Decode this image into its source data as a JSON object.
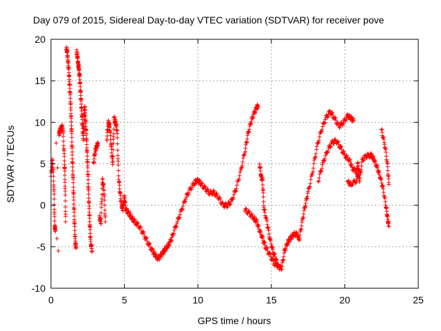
{
  "chart_data": {
    "type": "scatter",
    "title": "Day 079 of 2015, Sidereal Day-to-day VTEC variation (SDTVAR) for receiver pove",
    "xlabel": "GPS time / hours",
    "ylabel": "SDTVAR / TECUs",
    "xlim": [
      0,
      25
    ],
    "ylim": [
      -10,
      20
    ],
    "xticks": [
      0,
      5,
      10,
      15,
      20,
      25
    ],
    "yticks": [
      -10,
      -5,
      0,
      5,
      10,
      15,
      20
    ],
    "grid": true,
    "marker": "+",
    "color": "#ff0000",
    "series": [
      {
        "name": "SDTVAR",
        "points": [
          [
            0.0,
            3.5
          ],
          [
            0.1,
            5.5
          ],
          [
            0.2,
            2.0
          ],
          [
            0.25,
            -2.5
          ],
          [
            0.3,
            -3.0
          ],
          [
            0.35,
            7.5
          ],
          [
            0.4,
            -4.0
          ],
          [
            0.45,
            4.5
          ],
          [
            0.5,
            -5.5
          ],
          [
            0.55,
            8.5
          ],
          [
            0.6,
            9.0
          ],
          [
            0.7,
            9.3
          ],
          [
            0.8,
            9.5
          ],
          [
            0.9,
            6.0
          ],
          [
            0.95,
            3.0
          ],
          [
            1.0,
            -2.0
          ],
          [
            1.05,
            19.0
          ],
          [
            1.1,
            18.5
          ],
          [
            1.15,
            17.5
          ],
          [
            1.2,
            16.5
          ],
          [
            1.25,
            15.0
          ],
          [
            1.3,
            13.5
          ],
          [
            1.35,
            11.5
          ],
          [
            1.4,
            9.0
          ],
          [
            1.45,
            6.0
          ],
          [
            1.5,
            3.5
          ],
          [
            1.55,
            0.5
          ],
          [
            1.6,
            -2.0
          ],
          [
            1.65,
            -4.5
          ],
          [
            1.7,
            -5.0
          ],
          [
            1.75,
            18.5
          ],
          [
            1.8,
            18.0
          ],
          [
            1.85,
            17.0
          ],
          [
            1.9,
            16.5
          ],
          [
            1.95,
            15.5
          ],
          [
            2.0,
            14.0
          ],
          [
            2.05,
            12.5
          ],
          [
            2.1,
            11.0
          ],
          [
            2.15,
            9.5
          ],
          [
            2.2,
            8.0
          ],
          [
            2.25,
            10.5
          ],
          [
            2.3,
            12.0
          ],
          [
            2.35,
            10.0
          ],
          [
            2.4,
            8.5
          ],
          [
            2.45,
            6.5
          ],
          [
            2.5,
            4.5
          ],
          [
            2.55,
            2.0
          ],
          [
            2.6,
            -0.5
          ],
          [
            2.65,
            -2.5
          ],
          [
            2.7,
            -4.5
          ],
          [
            2.8,
            -5.5
          ],
          [
            2.9,
            5.0
          ],
          [
            3.0,
            6.5
          ],
          [
            3.1,
            7.0
          ],
          [
            3.2,
            7.5
          ],
          [
            3.3,
            -1.5
          ],
          [
            3.4,
            -2.0
          ],
          [
            3.5,
            3.0
          ],
          [
            3.6,
            2.0
          ],
          [
            3.7,
            -2.0
          ],
          [
            3.8,
            8.0
          ],
          [
            3.9,
            10.0
          ],
          [
            4.0,
            9.5
          ],
          [
            4.1,
            7.0
          ],
          [
            4.2,
            5.0
          ],
          [
            4.3,
            10.5
          ],
          [
            4.4,
            10.0
          ],
          [
            4.5,
            9.0
          ],
          [
            4.6,
            3.5
          ],
          [
            4.7,
            1.5
          ],
          [
            4.8,
            0.0
          ],
          [
            4.9,
            -0.5
          ],
          [
            5.0,
            1.0
          ],
          [
            5.1,
            -0.5
          ],
          [
            5.3,
            -1.0
          ],
          [
            5.5,
            -1.5
          ],
          [
            5.7,
            -2.0
          ],
          [
            6.0,
            -2.5
          ],
          [
            6.3,
            -3.5
          ],
          [
            6.6,
            -4.5
          ],
          [
            6.9,
            -5.5
          ],
          [
            7.1,
            -6.0
          ],
          [
            7.3,
            -6.5
          ],
          [
            7.5,
            -6.0
          ],
          [
            7.7,
            -5.5
          ],
          [
            7.9,
            -5.0
          ],
          [
            8.1,
            -4.5
          ],
          [
            8.3,
            -3.5
          ],
          [
            8.6,
            -2.0
          ],
          [
            8.9,
            -0.5
          ],
          [
            9.2,
            1.0
          ],
          [
            9.5,
            2.0
          ],
          [
            9.8,
            2.8
          ],
          [
            10.0,
            3.0
          ],
          [
            10.2,
            2.6
          ],
          [
            10.5,
            2.0
          ],
          [
            10.8,
            1.5
          ],
          [
            11.1,
            1.5
          ],
          [
            11.4,
            1.0
          ],
          [
            11.7,
            0.0
          ],
          [
            12.0,
            0.0
          ],
          [
            12.3,
            0.5
          ],
          [
            12.6,
            2.0
          ],
          [
            12.9,
            4.0
          ],
          [
            13.2,
            6.5
          ],
          [
            13.4,
            8.5
          ],
          [
            13.6,
            10.0
          ],
          [
            13.8,
            11.0
          ],
          [
            14.0,
            11.8
          ],
          [
            14.1,
            12.0
          ],
          [
            14.2,
            5.0
          ],
          [
            14.3,
            3.5
          ],
          [
            14.4,
            3.0
          ],
          [
            14.5,
            -0.5
          ],
          [
            14.7,
            -2.0
          ],
          [
            14.9,
            -4.0
          ],
          [
            15.1,
            -5.5
          ],
          [
            15.3,
            -6.5
          ],
          [
            15.5,
            -7.5
          ],
          [
            15.7,
            -7.5
          ],
          [
            15.9,
            -5.5
          ],
          [
            16.1,
            -4.5
          ],
          [
            16.3,
            -4.0
          ],
          [
            16.5,
            -3.5
          ],
          [
            16.7,
            -3.5
          ],
          [
            16.9,
            -4.0
          ],
          [
            17.1,
            -2.0
          ],
          [
            17.3,
            0.0
          ],
          [
            17.5,
            1.5
          ],
          [
            17.8,
            4.0
          ],
          [
            18.1,
            7.0
          ],
          [
            18.4,
            9.0
          ],
          [
            18.7,
            10.5
          ],
          [
            19.0,
            11.3
          ],
          [
            19.3,
            10.5
          ],
          [
            19.6,
            9.5
          ],
          [
            19.9,
            10.0
          ],
          [
            20.2,
            10.8
          ],
          [
            20.4,
            10.5
          ],
          [
            20.6,
            10.2
          ],
          [
            13.2,
            -0.5
          ],
          [
            13.5,
            -1.0
          ],
          [
            13.8,
            -1.5
          ],
          [
            14.0,
            -2.0
          ],
          [
            14.2,
            -3.0
          ],
          [
            14.4,
            -4.0
          ],
          [
            14.6,
            -5.0
          ],
          [
            14.9,
            -6.0
          ],
          [
            15.2,
            -7.0
          ],
          [
            15.5,
            -7.3
          ],
          [
            18.2,
            3.0
          ],
          [
            18.5,
            5.0
          ],
          [
            18.8,
            6.5
          ],
          [
            19.1,
            7.5
          ],
          [
            19.4,
            7.8
          ],
          [
            19.7,
            7.0
          ],
          [
            20.0,
            6.0
          ],
          [
            20.3,
            5.5
          ],
          [
            20.5,
            4.5
          ],
          [
            20.8,
            4.0
          ],
          [
            20.9,
            5.0
          ],
          [
            21.0,
            3.0
          ],
          [
            21.2,
            5.5
          ],
          [
            21.5,
            6.0
          ],
          [
            21.8,
            6.0
          ],
          [
            22.0,
            5.5
          ],
          [
            22.2,
            4.5
          ],
          [
            22.4,
            3.5
          ],
          [
            22.6,
            2.0
          ],
          [
            22.8,
            0.0
          ],
          [
            22.9,
            -1.5
          ],
          [
            23.0,
            -2.5
          ],
          [
            22.5,
            9.0
          ],
          [
            22.7,
            7.5
          ],
          [
            22.9,
            5.0
          ],
          [
            23.0,
            2.5
          ],
          [
            21.0,
            4.2
          ],
          [
            20.8,
            3.0
          ],
          [
            20.4,
            2.5
          ],
          [
            20.2,
            2.8
          ]
        ]
      }
    ]
  }
}
